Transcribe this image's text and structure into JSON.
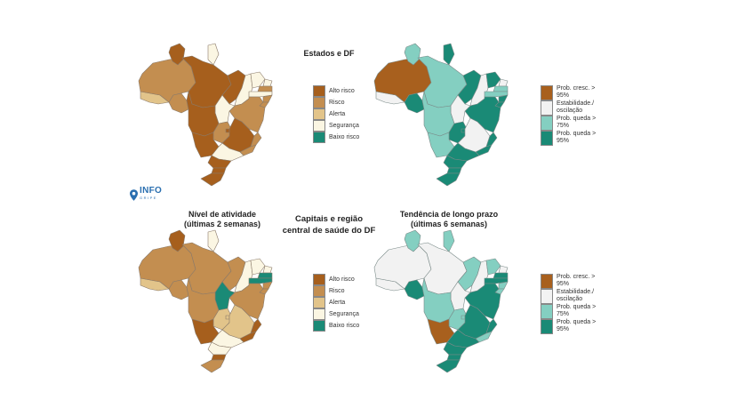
{
  "colors": {
    "alto_risco": "#a65f1d",
    "risco": "#c38e50",
    "alerta": "#e2c48a",
    "seguranca": "#fbf6e3",
    "baixo_risco": "#1a8a76",
    "prob_cresc": "#a8601e",
    "estabilidade": "#f2f2f2",
    "prob_queda_75": "#84cfc1",
    "prob_queda_95": "#1a8a76"
  },
  "titles": {
    "row1": "Estados e DF",
    "row2_line1": "Capitais e região",
    "row2_line2": "central de saúde do DF",
    "col1_line1": "Nível de atividade",
    "col1_line2": "(últimas 2 semanas)",
    "col2_line1": "Tendência de longo prazo",
    "col2_line2": "(últimas 6 semanas)"
  },
  "logo": {
    "name": "INFO",
    "sub": "GRIPE",
    "icon": "location-pin-icon"
  },
  "legend_activity": [
    {
      "label": "Alto risco",
      "key": "alto_risco"
    },
    {
      "label": "Risco",
      "key": "risco"
    },
    {
      "label": "Alerta",
      "key": "alerta"
    },
    {
      "label": "Segurança",
      "key": "seguranca"
    },
    {
      "label": "Baixo risco",
      "key": "baixo_risco"
    }
  ],
  "legend_trend": [
    {
      "label": "Prob. cresc. > 95%",
      "key": "prob_cresc"
    },
    {
      "label": "Estabilidade./ oscilação",
      "key": "estabilidade"
    },
    {
      "label": "Prob. queda > 75%",
      "key": "prob_queda_75"
    },
    {
      "label": "Prob. queda > 95%",
      "key": "prob_queda_95"
    }
  ],
  "maps": {
    "states_activity": {
      "AC": "alerta",
      "AM": "risco",
      "RR": "alto_risco",
      "AP": "seguranca",
      "PA": "alto_risco",
      "MA": "alto_risco",
      "PI": "seguranca",
      "CE": "seguranca",
      "RN": "seguranca",
      "PB": "risco",
      "PE": "seguranca",
      "AL": "risco",
      "SE": "risco",
      "BA": "risco",
      "TO": "seguranca",
      "RO": "risco",
      "MT": "alto_risco",
      "GO": "risco",
      "DF": "alto_risco",
      "MG": "alto_risco",
      "ES": "risco",
      "RJ": "risco",
      "MS": "alto_risco",
      "SP": "seguranca",
      "PR": "alto_risco",
      "SC": "alto_risco",
      "RS": "alto_risco"
    },
    "states_trend": {
      "AC": "estabilidade",
      "AM": "prob_cresc",
      "RR": "prob_queda_75",
      "AP": "prob_queda_95",
      "PA": "prob_queda_75",
      "MA": "prob_queda_95",
      "PI": "estabilidade",
      "CE": "prob_queda_95",
      "RN": "estabilidade",
      "PB": "prob_queda_75",
      "PE": "prob_queda_75",
      "AL": "prob_queda_95",
      "SE": "prob_queda_95",
      "BA": "prob_queda_95",
      "TO": "estabilidade",
      "RO": "prob_queda_95",
      "MT": "prob_queda_75",
      "GO": "prob_queda_95",
      "DF": "prob_queda_95",
      "MG": "estabilidade",
      "ES": "prob_queda_95",
      "RJ": "prob_queda_95",
      "MS": "prob_queda_75",
      "SP": "prob_queda_95",
      "PR": "prob_queda_95",
      "SC": "prob_queda_95",
      "RS": "prob_queda_95"
    },
    "capitals_activity": {
      "AC": "alerta",
      "AM": "risco",
      "RR": "alto_risco",
      "AP": "seguranca",
      "PA": "risco",
      "MA": "risco",
      "PI": "seguranca",
      "CE": "seguranca",
      "RN": "seguranca",
      "PB": "baixo_risco",
      "PE": "baixo_risco",
      "AL": "risco",
      "SE": "risco",
      "BA": "risco",
      "TO": "baixo_risco",
      "RO": "risco",
      "MT": "risco",
      "GO": "alerta",
      "DF": "alerta",
      "MG": "alerta",
      "ES": "alto_risco",
      "RJ": "alto_risco",
      "MS": "alto_risco",
      "SP": "seguranca",
      "PR": "seguranca",
      "SC": "alto_risco",
      "RS": "risco"
    },
    "capitals_trend": {
      "AC": "estabilidade",
      "AM": "estabilidade",
      "RR": "prob_queda_75",
      "AP": "prob_queda_75",
      "PA": "estabilidade",
      "MA": "prob_queda_75",
      "PI": "estabilidade",
      "CE": "prob_queda_75",
      "RN": "estabilidade",
      "PB": "prob_queda_95",
      "PE": "prob_queda_95",
      "AL": "prob_queda_75",
      "SE": "prob_queda_75",
      "BA": "prob_queda_95",
      "TO": "estabilidade",
      "RO": "prob_queda_95",
      "MT": "prob_queda_75",
      "GO": "prob_queda_75",
      "DF": "prob_queda_75",
      "MG": "prob_queda_95",
      "ES": "prob_queda_95",
      "RJ": "prob_queda_75",
      "MS": "prob_cresc",
      "SP": "prob_queda_95",
      "PR": "prob_queda_95",
      "SC": "prob_queda_95",
      "RS": "prob_queda_95"
    }
  }
}
